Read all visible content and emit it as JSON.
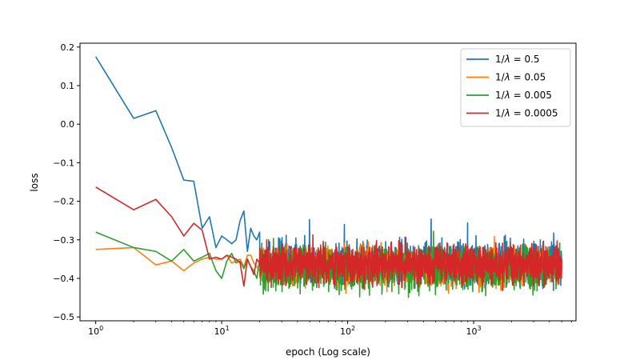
{
  "chart_data": {
    "type": "line",
    "xlabel": "epoch (Log scale)",
    "ylabel": "loss",
    "x_scale": "log",
    "xlim": [
      0.75,
      6500
    ],
    "ylim": [
      -0.51,
      0.21
    ],
    "x_ticks": [
      {
        "value": 1,
        "base": "10",
        "exp": "0"
      },
      {
        "value": 10,
        "base": "10",
        "exp": "1"
      },
      {
        "value": 100,
        "base": "10",
        "exp": "2"
      },
      {
        "value": 1000,
        "base": "10",
        "exp": "3"
      }
    ],
    "y_ticks": [
      {
        "value": 0.2,
        "label": "0.2"
      },
      {
        "value": 0.1,
        "label": "0.1"
      },
      {
        "value": 0.0,
        "label": "0.0"
      },
      {
        "value": -0.1,
        "label": "−0.1"
      },
      {
        "value": -0.2,
        "label": "−0.2"
      },
      {
        "value": -0.3,
        "label": "−0.3"
      },
      {
        "value": -0.4,
        "label": "−0.4"
      },
      {
        "value": -0.5,
        "label": "−0.5"
      }
    ],
    "grid": false,
    "legend_position": "top-right",
    "noisy_tail": {
      "start_epoch": 20,
      "end_epoch": 5000
    },
    "series": [
      {
        "name": "1/λ = 0.5",
        "legend_prefix": "1/",
        "legend_symbol": "λ",
        "legend_value": " = 0.5",
        "color": "#1f77b4",
        "x": [
          1,
          2,
          3,
          4,
          5,
          6,
          7,
          8,
          9,
          10,
          11,
          12,
          13,
          14,
          15,
          16,
          17,
          18,
          19,
          20
        ],
        "y": [
          0.175,
          0.015,
          0.035,
          -0.06,
          -0.145,
          -0.148,
          -0.27,
          -0.24,
          -0.32,
          -0.29,
          -0.3,
          -0.31,
          -0.3,
          -0.25,
          -0.225,
          -0.33,
          -0.27,
          -0.29,
          -0.3,
          -0.28
        ],
        "tail_mean": -0.36,
        "tail_spread": 0.05
      },
      {
        "name": "1/λ = 0.05",
        "legend_prefix": "1/",
        "legend_symbol": "λ",
        "legend_value": " = 0.05",
        "color": "#ff7f0e",
        "x": [
          1,
          2,
          3,
          4,
          5,
          6,
          7,
          8,
          9,
          10,
          11,
          12,
          13,
          14,
          15,
          16,
          17,
          18,
          19,
          20
        ],
        "y": [
          -0.325,
          -0.32,
          -0.365,
          -0.355,
          -0.38,
          -0.36,
          -0.35,
          -0.345,
          -0.35,
          -0.35,
          -0.34,
          -0.36,
          -0.355,
          -0.35,
          -0.37,
          -0.34,
          -0.34,
          -0.36,
          -0.37,
          -0.38
        ],
        "tail_mean": -0.37,
        "tail_spread": 0.045
      },
      {
        "name": "1/λ = 0.005",
        "legend_prefix": "1/",
        "legend_symbol": "λ",
        "legend_value": " = 0.005",
        "color": "#2ca02c",
        "x": [
          1,
          2,
          3,
          4,
          5,
          6,
          7,
          8,
          9,
          10,
          11,
          12,
          13,
          14,
          15,
          16,
          17,
          18,
          19,
          20
        ],
        "y": [
          -0.28,
          -0.32,
          -0.33,
          -0.355,
          -0.325,
          -0.355,
          -0.345,
          -0.335,
          -0.38,
          -0.4,
          -0.355,
          -0.335,
          -0.36,
          -0.355,
          -0.375,
          -0.35,
          -0.37,
          -0.38,
          -0.4,
          -0.35
        ],
        "tail_mean": -0.375,
        "tail_spread": 0.05
      },
      {
        "name": "1/λ = 0.0005",
        "legend_prefix": "1/",
        "legend_symbol": "λ",
        "legend_value": " = 0.0005",
        "color": "#d62728",
        "x": [
          1,
          2,
          3,
          4,
          5,
          6,
          7,
          8,
          9,
          10,
          11,
          12,
          13,
          14,
          15,
          16,
          17,
          18,
          19,
          20
        ],
        "y": [
          -0.163,
          -0.222,
          -0.195,
          -0.24,
          -0.29,
          -0.257,
          -0.275,
          -0.35,
          -0.345,
          -0.35,
          -0.34,
          -0.345,
          -0.35,
          -0.36,
          -0.42,
          -0.35,
          -0.37,
          -0.39,
          -0.35,
          -0.36
        ],
        "tail_mean": -0.365,
        "tail_spread": 0.045
      }
    ]
  }
}
